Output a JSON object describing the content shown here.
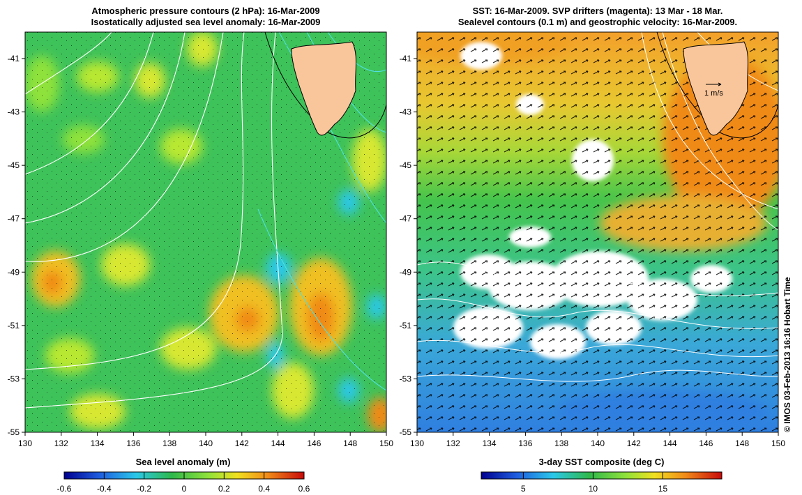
{
  "left_panel": {
    "title_line1": "Atmospheric pressure contours (2 hPa): 16-Mar-2009",
    "title_line2": "Isostatically adjusted sea level anomaly: 16-Mar-2009",
    "colorbar_label": "Sea level anomaly (m)",
    "colorbar_ticks": [
      "-0.6",
      "-0.4",
      "-0.2",
      "0",
      "0.2",
      "0.4",
      "0.6"
    ]
  },
  "right_panel": {
    "title_line1": "SST: 16-Mar-2009. SVP drifters (magenta): 13 Mar - 18 Mar.",
    "title_line2": "Sealevel contours (0.1 m) and geostrophic velocity: 16-Mar-2009.",
    "colorbar_label": "3-day SST composite (deg C)",
    "colorbar_ticks": [
      "5",
      "10",
      "15"
    ],
    "velocity_key": "1 m/s"
  },
  "axes": {
    "lon_ticks": [
      "130",
      "132",
      "134",
      "136",
      "138",
      "140",
      "142",
      "144",
      "146",
      "148",
      "150"
    ],
    "lat_ticks": [
      "-41",
      "-43",
      "-45",
      "-47",
      "-49",
      "-51",
      "-53",
      "-55"
    ]
  },
  "credit": "© IMOS 03-Feb-2013 16:16 Hobart Time",
  "colors": {
    "land": "#f9c59a",
    "ocean_green": "#3fc45a",
    "ssh_high": "#f5a623",
    "sst_warm": "#f0a020",
    "sst_cold": "#3aa8e6",
    "cloud": "#ffffff",
    "velocity_arrow": "#000000",
    "pressure_contour": "#ffffff",
    "cyan_contour": "#4fe0e0"
  }
}
